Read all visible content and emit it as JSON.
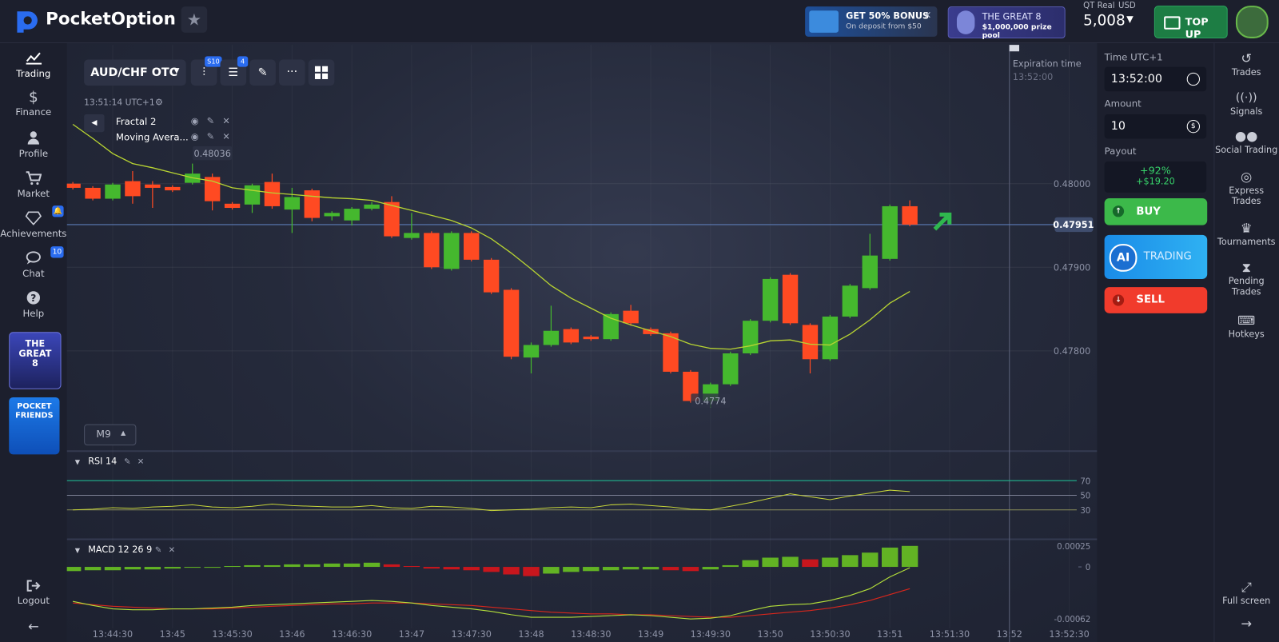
{
  "header": {
    "logo": "PocketOption",
    "bonus_title": "GET 50% BONUS",
    "bonus_subtitle": "On deposit from $50",
    "promo_title": "THE GREAT 8",
    "promo_subtitle": "$1,000,000 prize pool",
    "account_type": "QT Real",
    "currency": "USD",
    "balance": "5,008",
    "top_up": "TOP UP"
  },
  "sidebar": {
    "items": [
      "Trading",
      "Finance",
      "Profile",
      "Market",
      "Achievements",
      "Chat",
      "Help"
    ],
    "chat_badge": "10",
    "promo_1": "THE GREAT 8",
    "promo_2": "POCKET FRIENDS",
    "logout": "Logout"
  },
  "toolbar": {
    "asset": "AUD/CHF OTC",
    "chart_badge": "S10",
    "indicator_badge": "4",
    "server_time": "13:51:14 UTC+1",
    "indicators": [
      "Fractal 2",
      "Moving Avera..."
    ],
    "timeframe": "M9"
  },
  "trade_panel": {
    "time_label": "Time UTC+1",
    "time": "13:52:00",
    "amount_label": "Amount",
    "amount": "10",
    "payout_label": "Payout",
    "payout_percent": "+92%",
    "payout_amount": "+$19.20",
    "buy": "BUY",
    "ai_badge": "AI",
    "ai_label": "TRADING",
    "sell": "SELL"
  },
  "right_menu": {
    "items": [
      "Trades",
      "Signals",
      "Social Trading",
      "Express Trades",
      "Tournaments",
      "Pending Trades",
      "Hotkeys"
    ],
    "fullscreen": "Full screen"
  },
  "chart_data": [
    {
      "type": "candlestick",
      "up_color": "#45b82e",
      "down_color": "#ff4a22",
      "ma_color": "#b8d432",
      "x": [
        49450,
        49460,
        49470,
        49480,
        49490,
        49500,
        49510,
        49520,
        49530,
        49540,
        49550,
        49560,
        49570,
        49580,
        49590,
        49600,
        49610,
        49620,
        49630,
        49640,
        49650,
        49660,
        49670,
        49680,
        49690,
        49700,
        49710,
        49720,
        49730,
        49740,
        49750,
        49760,
        49770,
        49780,
        49790,
        49800,
        49810,
        49820,
        49830,
        49840,
        49850,
        49860,
        49870
      ],
      "open": [
        0.48,
        0.47995,
        0.47982,
        0.48003,
        0.47999,
        0.47996,
        0.48001,
        0.48008,
        0.47976,
        0.47975,
        0.48002,
        0.47969,
        0.47992,
        0.47961,
        0.47956,
        0.4797,
        0.47978,
        0.47935,
        0.47941,
        0.47898,
        0.47941,
        0.47909,
        0.47873,
        0.47792,
        0.47807,
        0.47826,
        0.47817,
        0.47814,
        0.47848,
        0.47826,
        0.47821,
        0.47775,
        0.4774,
        0.4776,
        0.47797,
        0.47836,
        0.47891,
        0.47831,
        0.4779,
        0.47841,
        0.47875,
        0.4791,
        0.47973
      ],
      "high": [
        0.48002,
        0.47997,
        0.48001,
        0.48015,
        0.48003,
        0.47998,
        0.48024,
        0.48012,
        0.47978,
        0.48,
        0.48012,
        0.47995,
        0.47994,
        0.47967,
        0.47972,
        0.47978,
        0.47985,
        0.47965,
        0.47943,
        0.47943,
        0.47943,
        0.47911,
        0.47875,
        0.4781,
        0.47854,
        0.47828,
        0.47819,
        0.47846,
        0.47855,
        0.47828,
        0.47823,
        0.47777,
        0.47762,
        0.47799,
        0.47838,
        0.47888,
        0.47893,
        0.47833,
        0.47843,
        0.4788,
        0.4794,
        0.47975,
        0.4798
      ],
      "low": [
        0.47993,
        0.4798,
        0.4798,
        0.47976,
        0.47971,
        0.4799,
        0.47999,
        0.47968,
        0.47969,
        0.47965,
        0.4797,
        0.47941,
        0.47955,
        0.47956,
        0.4795,
        0.47968,
        0.47935,
        0.47933,
        0.47898,
        0.47896,
        0.47907,
        0.47868,
        0.4779,
        0.47773,
        0.47805,
        0.47808,
        0.47812,
        0.47812,
        0.4783,
        0.47818,
        0.47773,
        0.47738,
        0.47732,
        0.47758,
        0.47795,
        0.47834,
        0.47831,
        0.47773,
        0.47788,
        0.47839,
        0.47873,
        0.47908,
        0.47949
      ],
      "close": [
        0.47995,
        0.47982,
        0.47999,
        0.47985,
        0.47995,
        0.47992,
        0.48012,
        0.47979,
        0.47971,
        0.47998,
        0.47973,
        0.47984,
        0.47959,
        0.47965,
        0.4797,
        0.47975,
        0.47937,
        0.47941,
        0.479,
        0.47941,
        0.47909,
        0.4787,
        0.47793,
        0.47807,
        0.47824,
        0.4781,
        0.47814,
        0.47844,
        0.47833,
        0.4782,
        0.47775,
        0.4774,
        0.4776,
        0.47797,
        0.47836,
        0.47886,
        0.47833,
        0.4779,
        0.47841,
        0.47878,
        0.47914,
        0.47973,
        0.47951
      ],
      "ma_values": [
        0.48071,
        0.48054,
        0.48036,
        0.48024,
        0.48019,
        0.48013,
        0.48007,
        0.48003,
        0.47995,
        0.47992,
        0.47989,
        0.47987,
        0.47985,
        0.47983,
        0.47982,
        0.4798,
        0.47974,
        0.47968,
        0.47962,
        0.47956,
        0.47947,
        0.47934,
        0.47917,
        0.47898,
        0.47878,
        0.47863,
        0.47851,
        0.47839,
        0.47831,
        0.47824,
        0.47817,
        0.47808,
        0.47803,
        0.47802,
        0.47806,
        0.47812,
        0.47813,
        0.47808,
        0.47807,
        0.4782,
        0.47837,
        0.47857,
        0.47871
      ],
      "ylim": [
        0.47681,
        0.48166
      ],
      "yticks": [
        {
          "value": 0.478,
          "label": "0.47800"
        },
        {
          "value": 0.479,
          "label": "0.47900"
        },
        {
          "value": 0.48,
          "label": "0.48000"
        }
      ],
      "xlim": [
        49447,
        49964
      ],
      "xticks": [
        {
          "value": 49470,
          "label": "13:44:30"
        },
        {
          "value": 49500,
          "label": "13:45"
        },
        {
          "value": 49530,
          "label": "13:45:30"
        },
        {
          "value": 49560,
          "label": "13:46"
        },
        {
          "value": 49590,
          "label": "13:46:30"
        },
        {
          "value": 49620,
          "label": "13:47"
        },
        {
          "value": 49650,
          "label": "13:47:30"
        },
        {
          "value": 49680,
          "label": "13:48"
        },
        {
          "value": 49710,
          "label": "13:48:30"
        },
        {
          "value": 49740,
          "label": "13:49"
        },
        {
          "value": 49770,
          "label": "13:49:30"
        },
        {
          "value": 49800,
          "label": "13:50"
        },
        {
          "value": 49830,
          "label": "13:50:30"
        },
        {
          "value": 49860,
          "label": "13:51"
        },
        {
          "value": 49890,
          "label": "13:51:30"
        },
        {
          "value": 49920,
          "label": "13:52"
        },
        {
          "value": 49950,
          "label": "13:52:30"
        }
      ],
      "current_price": 0.47951,
      "expiration_label": "Expiration time",
      "expiration_time": "13:52:00",
      "expiration_x": 49920,
      "annotations": [
        {
          "value": 0.48036,
          "x": 49520
        },
        {
          "value": 0.4774,
          "x": 49770
        }
      ]
    },
    {
      "type": "line",
      "title": "RSI 14",
      "color": "#c7d53a",
      "values": [
        30,
        31,
        33,
        32,
        34,
        35,
        37,
        34,
        33,
        35,
        38,
        36,
        35,
        34,
        34,
        36,
        33,
        32,
        35,
        34,
        32,
        29,
        30,
        31,
        33,
        34,
        33,
        37,
        38,
        36,
        34,
        31,
        30,
        35,
        40,
        46,
        52,
        48,
        44,
        49,
        53,
        57,
        55
      ],
      "ylim": [
        -9,
        107
      ],
      "yticks": [
        30,
        50,
        70
      ],
      "tick_colors": [
        "#8c8f5a",
        "#7d8196",
        "#1fb58f"
      ]
    },
    {
      "type": "macd",
      "title": "MACD 12 26 9",
      "rising_color": "#62b324",
      "falling_color": "#c8161d",
      "macd_color": "#b5e03a",
      "signal_color": "#d9261c",
      "histogram": [
        -5e-05,
        -4e-05,
        -4e-05,
        -3e-05,
        -3e-05,
        -2e-05,
        -1e-05,
        -1e-05,
        1e-05,
        2e-05,
        2e-05,
        3e-05,
        3e-05,
        4e-05,
        4e-05,
        5e-05,
        3e-05,
        1e-05,
        -2e-05,
        -3e-05,
        -4e-05,
        -6e-05,
        -9e-05,
        -0.00011,
        -8e-05,
        -6e-05,
        -5e-05,
        -4e-05,
        -3e-05,
        -3e-05,
        -4e-05,
        -5e-05,
        -3e-05,
        2e-05,
        8e-05,
        0.00011,
        0.00012,
        9e-05,
        0.00011,
        0.00014,
        0.00017,
        0.00023,
        0.00025
      ],
      "macd": [
        -0.00041,
        -0.00046,
        -0.0005,
        -0.00051,
        -0.00051,
        -0.0005,
        -0.0005,
        -0.00049,
        -0.00048,
        -0.00046,
        -0.00045,
        -0.00044,
        -0.00043,
        -0.00042,
        -0.00041,
        -0.0004,
        -0.00041,
        -0.00043,
        -0.00046,
        -0.00048,
        -0.0005,
        -0.00053,
        -0.00057,
        -0.0006,
        -0.0006,
        -0.0006,
        -0.00059,
        -0.00058,
        -0.00057,
        -0.00058,
        -0.0006,
        -0.00062,
        -0.00061,
        -0.00058,
        -0.00052,
        -0.00047,
        -0.00045,
        -0.00044,
        -0.0004,
        -0.00034,
        -0.00026,
        -0.00012,
        -1e-05
      ],
      "signal": [
        -0.00043,
        -0.00045,
        -0.00047,
        -0.00048,
        -0.00049,
        -0.0005,
        -0.0005,
        -0.0005,
        -0.00049,
        -0.00048,
        -0.00047,
        -0.00046,
        -0.00045,
        -0.00044,
        -0.00044,
        -0.00043,
        -0.00043,
        -0.00043,
        -0.00044,
        -0.00045,
        -0.00046,
        -0.00048,
        -0.0005,
        -0.00052,
        -0.00054,
        -0.00055,
        -0.00056,
        -0.00056,
        -0.00057,
        -0.00057,
        -0.00058,
        -0.00059,
        -0.0006,
        -0.0006,
        -0.00058,
        -0.00056,
        -0.00054,
        -0.00052,
        -0.00049,
        -0.00045,
        -0.0004,
        -0.00033,
        -0.00026
      ],
      "ylim": [
        -0.00073,
        0.0003
      ],
      "yticks": [
        -0.00062,
        0,
        0.00025
      ]
    }
  ]
}
